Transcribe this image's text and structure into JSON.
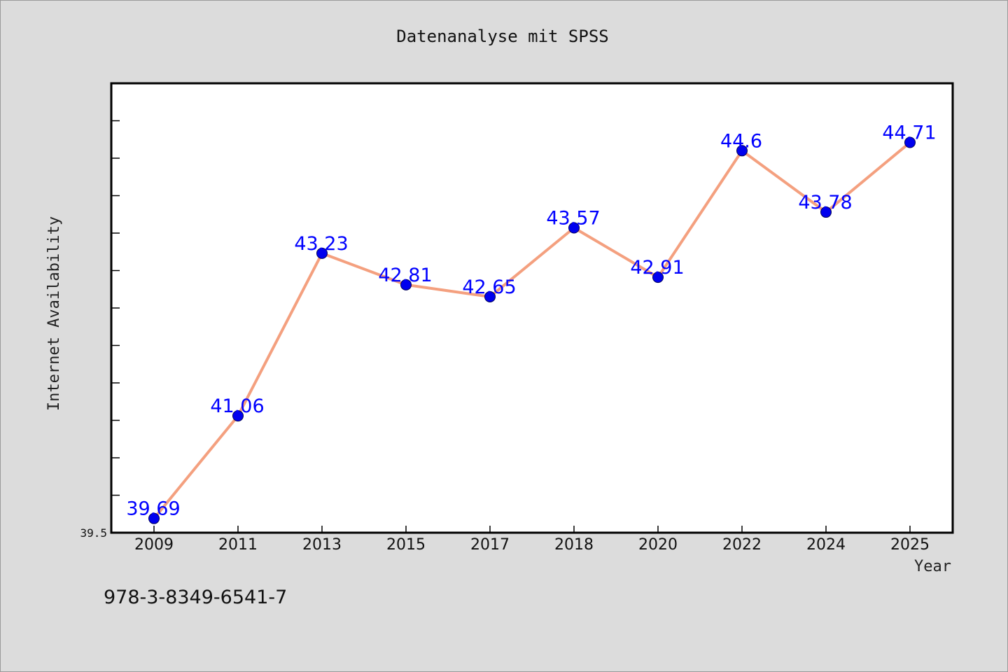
{
  "chart_data": {
    "type": "line",
    "title": "Datenanalyse mit SPSS",
    "xlabel": "Year",
    "ylabel": "Internet Availability",
    "categories": [
      "2009",
      "2011",
      "2013",
      "2015",
      "2017",
      "2018",
      "2020",
      "2022",
      "2024",
      "2025"
    ],
    "series": [
      {
        "values": [
          39.69,
          41.06,
          43.23,
          42.81,
          42.65,
          43.57,
          42.91,
          44.6,
          43.78,
          44.71
        ]
      }
    ],
    "data_labels": [
      "39.69",
      "41.06",
      "43.23",
      "42.81",
      "42.65",
      "43.57",
      "42.91",
      "44.6",
      "43.78",
      "44.71"
    ],
    "ytick_label": "39.5",
    "ylim": [
      39.5,
      45.5
    ],
    "grid": false,
    "line_color": "#f4a07f",
    "marker_color": "#0000ee",
    "label_color": "#0000ff"
  },
  "footer_text": "978-3-8349-6541-7"
}
